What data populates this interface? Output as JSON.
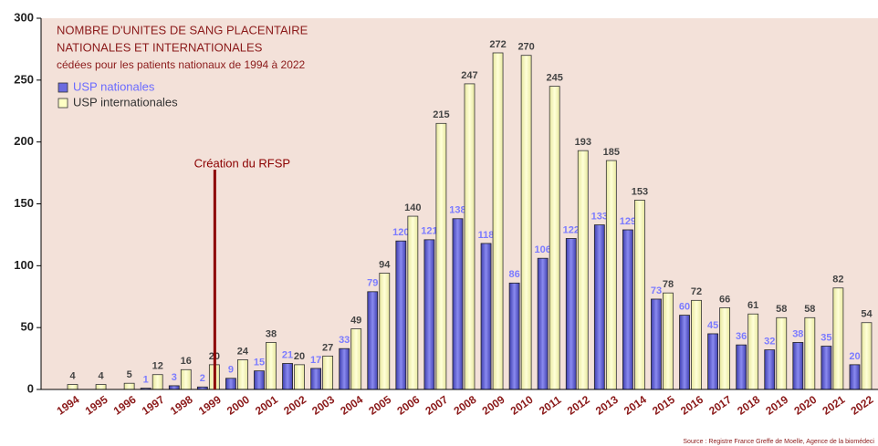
{
  "chart_data": {
    "type": "bar",
    "title": [
      "NOMBRE D'UNITES DE SANG PLACENTAIRE",
      "NATIONALES ET INTERNATIONALES"
    ],
    "subtitle": "cédées pour les patients nationaux de 1994 à 2022",
    "categories": [
      "1994",
      "1995",
      "1996",
      "1997",
      "1998",
      "1999",
      "2000",
      "2001",
      "2002",
      "2003",
      "2004",
      "2005",
      "2006",
      "2007",
      "2008",
      "2009",
      "2010",
      "2011",
      "2012",
      "2013",
      "2014",
      "2015",
      "2016",
      "2017",
      "2018",
      "2019",
      "2020",
      "2021",
      "2022"
    ],
    "series": [
      {
        "name": "USP nationales",
        "color": "#6b6be0",
        "values": [
          null,
          null,
          null,
          1,
          3,
          2,
          9,
          15,
          21,
          17,
          33,
          79,
          120,
          121,
          138,
          118,
          86,
          106,
          122,
          133,
          129,
          73,
          60,
          45,
          36,
          32,
          38,
          35,
          20
        ]
      },
      {
        "name": "USP internationales",
        "color": "#ffffc4",
        "values": [
          4,
          4,
          5,
          12,
          16,
          20,
          24,
          38,
          20,
          27,
          49,
          94,
          140,
          215,
          247,
          272,
          270,
          245,
          193,
          185,
          153,
          78,
          72,
          66,
          61,
          58,
          58,
          82,
          54
        ]
      }
    ],
    "ylim": [
      0,
      300
    ],
    "yticks": [
      0,
      50,
      100,
      150,
      200,
      250,
      300
    ],
    "annotation": {
      "text": "Création du RFSP",
      "category": "1999"
    },
    "source": "Source : Registre France Greffe de Moelle, Agence de la biomédeci"
  }
}
